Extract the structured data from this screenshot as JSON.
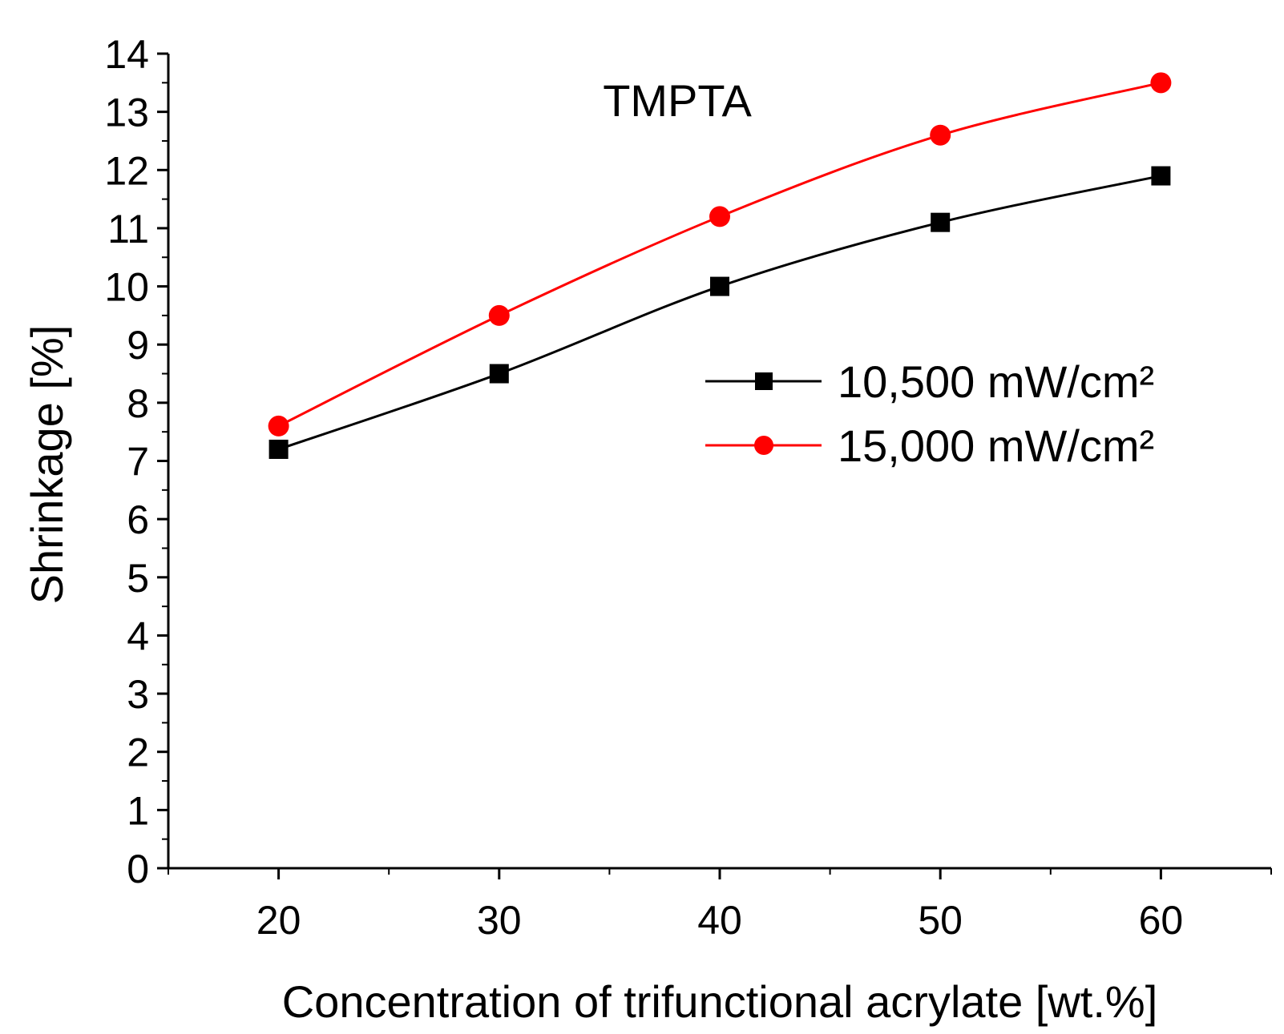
{
  "chart_data": {
    "type": "line",
    "title": "",
    "annotation": "TMPTA",
    "xlabel": "Concentration of trifunctional acrylate [wt.%]",
    "ylabel": "Shrinkage [%]",
    "xlim": [
      15,
      65
    ],
    "ylim": [
      0,
      14
    ],
    "x": [
      20,
      30,
      40,
      50,
      60
    ],
    "xticks": [
      20,
      30,
      40,
      50,
      60
    ],
    "xticklabels": [
      "20",
      "30",
      "40",
      "50",
      "60"
    ],
    "yticks": [
      0,
      1,
      2,
      3,
      4,
      5,
      6,
      7,
      8,
      9,
      10,
      11,
      12,
      13,
      14
    ],
    "yticklabels": [
      "0",
      "1",
      "2",
      "3",
      "4",
      "5",
      "6",
      "7",
      "8",
      "9",
      "10",
      "11",
      "12",
      "13",
      "14"
    ],
    "grid": false,
    "legend_position": "center-right",
    "series": [
      {
        "name": "10,500 mW/cm²",
        "values": [
          7.2,
          8.5,
          10.0,
          11.1,
          11.9
        ],
        "color": "#000000",
        "marker": "square"
      },
      {
        "name": "15,000 mW/cm²",
        "values": [
          7.6,
          9.5,
          11.2,
          12.6,
          13.5
        ],
        "color": "#ff0000",
        "marker": "circle"
      }
    ]
  }
}
